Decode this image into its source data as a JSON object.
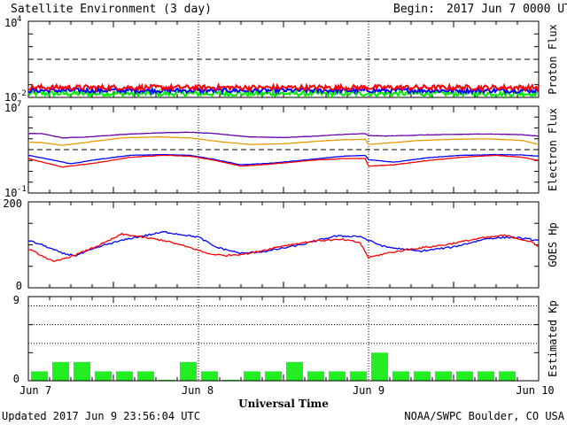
{
  "header": {
    "title": "Satellite Environment (3 day)",
    "begin_label": "Begin:",
    "begin_value": "2017 Jun 7 0000 UTC"
  },
  "footer": {
    "updated": "Updated 2017 Jun  9 23:56:04 UTC",
    "source": "NOAA/SWPC Boulder, CO USA"
  },
  "x_axis": {
    "title": "Universal Time",
    "tick_labels": [
      "Jun 7",
      "Jun 8",
      "Jun 9",
      "Jun 10"
    ]
  },
  "colors": {
    "red": "#ff0000",
    "blue": "#0000ff",
    "green": "#00ee00",
    "purple": "#6600aa",
    "orange": "#e89a00",
    "kp_bar": "#22ee22"
  },
  "chart_data": [
    {
      "type": "line",
      "panel": "proton",
      "ylabel": "Proton Flux",
      "y_scale": "log",
      "ylim": [
        0.01,
        10000
      ],
      "y_tick_labels": [
        {
          "base": "10",
          "exp": "4"
        },
        {
          "base": "10",
          "exp": "-2"
        }
      ],
      "threshold": 10,
      "x_range_days": [
        0,
        3
      ],
      "series": [
        {
          "color": "red",
          "level": 0.06,
          "noise": 0.2
        },
        {
          "color": "blue",
          "level": 0.035,
          "noise": 0.18
        },
        {
          "color": "green",
          "level": 0.02,
          "noise": 0.2
        }
      ]
    },
    {
      "type": "line",
      "panel": "electron",
      "ylabel": "Electron Flux",
      "y_scale": "log",
      "ylim": [
        0.1,
        10000000
      ],
      "y_tick_labels": [
        {
          "base": "10",
          "exp": "7"
        },
        {
          "base": "10",
          "exp": "-1"
        }
      ],
      "threshold": 1000,
      "series": [
        {
          "color": "purple",
          "x": [
            0,
            0.08,
            0.2,
            0.35,
            0.55,
            0.75,
            0.95,
            1.1,
            1.3,
            1.5,
            1.7,
            1.85,
            1.98,
            2.0,
            2.1,
            2.3,
            2.5,
            2.7,
            2.9,
            3.0
          ],
          "y": [
            30000,
            30000,
            12000,
            15000,
            25000,
            35000,
            40000,
            30000,
            15000,
            13000,
            18000,
            25000,
            30000,
            20000,
            18000,
            22000,
            25000,
            28000,
            24000,
            18000
          ]
        },
        {
          "color": "orange",
          "x": [
            0,
            0.08,
            0.2,
            0.35,
            0.55,
            0.75,
            0.95,
            1.1,
            1.3,
            1.5,
            1.7,
            1.85,
            1.98,
            2.0,
            2.1,
            2.3,
            2.5,
            2.7,
            2.9,
            3.0
          ],
          "y": [
            5000,
            4500,
            2500,
            5000,
            12000,
            15000,
            12000,
            6000,
            3000,
            3500,
            6000,
            8000,
            9000,
            3000,
            4000,
            7000,
            9000,
            10000,
            7000,
            3000
          ]
        },
        {
          "color": "blue",
          "x": [
            0,
            0.1,
            0.25,
            0.4,
            0.6,
            0.8,
            0.95,
            1.1,
            1.25,
            1.45,
            1.65,
            1.85,
            1.98,
            2.0,
            2.15,
            2.35,
            2.55,
            2.75,
            2.9,
            3.0
          ],
          "y": [
            300,
            150,
            50,
            120,
            300,
            350,
            300,
            120,
            40,
            60,
            120,
            250,
            300,
            120,
            70,
            180,
            300,
            350,
            320,
            250
          ]
        },
        {
          "color": "red",
          "x": [
            0,
            0.1,
            0.2,
            0.4,
            0.6,
            0.8,
            0.95,
            1.1,
            1.25,
            1.45,
            1.65,
            1.85,
            1.98,
            2.0,
            2.15,
            2.35,
            2.55,
            2.75,
            2.9,
            3.0
          ],
          "y": [
            150,
            60,
            25,
            60,
            200,
            300,
            250,
            100,
            30,
            50,
            100,
            150,
            150,
            30,
            40,
            100,
            200,
            300,
            200,
            100
          ]
        }
      ]
    },
    {
      "type": "line",
      "panel": "hp",
      "ylabel": "GOES Hp",
      "ylim": [
        0,
        200
      ],
      "y_tick_labels": [
        "200",
        "0"
      ],
      "series": [
        {
          "color": "blue",
          "x": [
            0,
            0.08,
            0.2,
            0.28,
            0.45,
            0.6,
            0.8,
            1.0,
            1.1,
            1.25,
            1.4,
            1.6,
            1.8,
            1.95,
            2.0,
            2.1,
            2.3,
            2.5,
            2.7,
            2.85,
            3.0
          ],
          "y": [
            110,
            100,
            80,
            75,
            100,
            115,
            130,
            118,
            95,
            80,
            85,
            100,
            120,
            120,
            110,
            95,
            85,
            95,
            115,
            118,
            110
          ]
        },
        {
          "color": "red",
          "x": [
            0,
            0.08,
            0.15,
            0.3,
            0.45,
            0.55,
            0.6,
            0.8,
            0.98,
            1.05,
            1.15,
            1.3,
            1.5,
            1.7,
            1.85,
            1.95,
            2.0,
            2.1,
            2.25,
            2.45,
            2.65,
            2.8,
            2.95,
            3.0
          ],
          "y": [
            90,
            75,
            60,
            80,
            105,
            125,
            122,
            110,
            90,
            80,
            75,
            80,
            98,
            110,
            112,
            105,
            70,
            80,
            90,
            100,
            115,
            122,
            108,
            95
          ]
        }
      ]
    },
    {
      "type": "bar",
      "panel": "kp",
      "ylabel": "Estimated Kp",
      "ylim": [
        0,
        9
      ],
      "y_tick_labels": [
        "9",
        "0"
      ],
      "dotted_levels": [
        4,
        6,
        8
      ],
      "bin_hours": 3,
      "values": [
        1,
        2,
        2,
        1,
        1,
        1,
        0.1,
        2,
        1,
        0.1,
        1,
        1,
        2,
        1,
        1,
        1,
        3,
        1,
        1,
        1,
        1,
        1,
        1,
        0
      ]
    }
  ]
}
